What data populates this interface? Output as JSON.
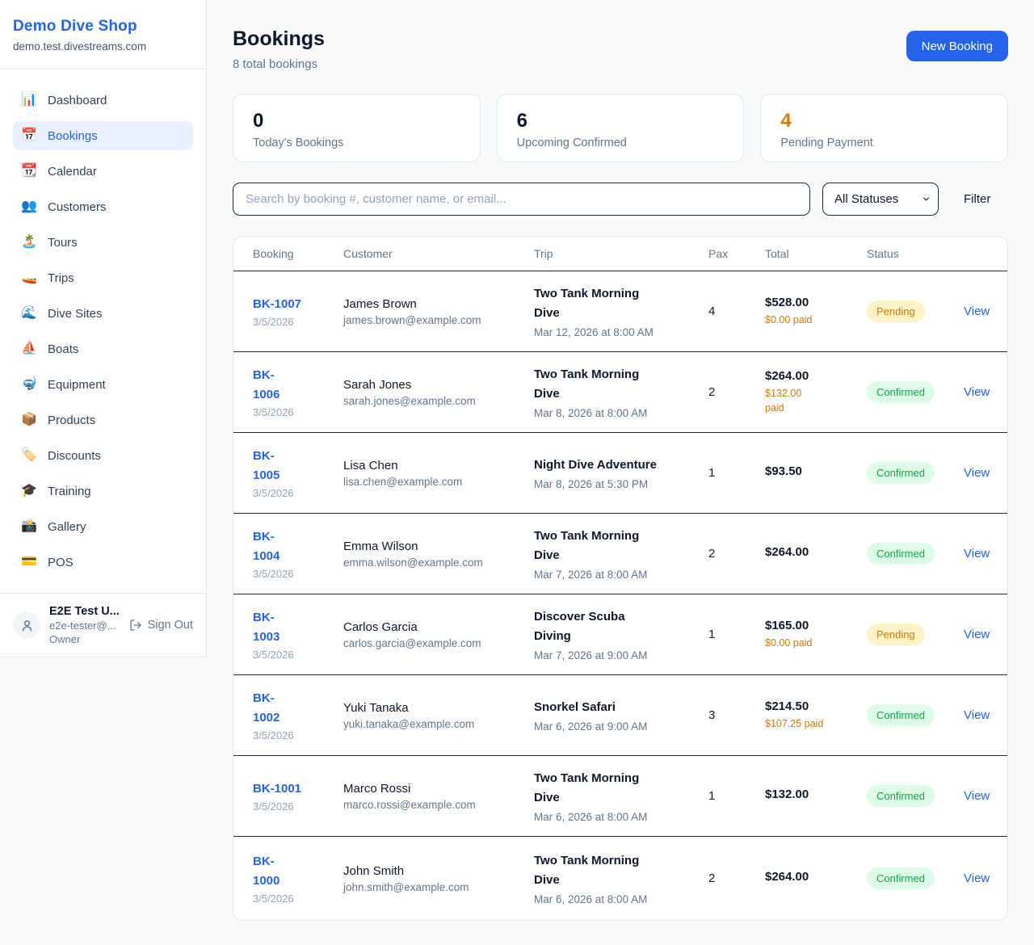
{
  "theme": {
    "accent": "#2563eb",
    "warning": "#d97706",
    "confirmed_text": "#16a34a",
    "confirmed_bg": "#dcfce7",
    "pending_bg": "#fef3c7"
  },
  "sidebar": {
    "brand": {
      "name": "Demo Dive Shop",
      "domain": "demo.test.divestreams.com"
    },
    "nav": [
      {
        "label": "Dashboard",
        "icon": "📊",
        "active": false
      },
      {
        "label": "Bookings",
        "icon": "📅",
        "active": true
      },
      {
        "label": "Calendar",
        "icon": "📆",
        "active": false
      },
      {
        "label": "Customers",
        "icon": "👥",
        "active": false
      },
      {
        "label": "Tours",
        "icon": "🏝️",
        "active": false
      },
      {
        "label": "Trips",
        "icon": "🚤",
        "active": false
      },
      {
        "label": "Dive Sites",
        "icon": "🌊",
        "active": false
      },
      {
        "label": "Boats",
        "icon": "⛵",
        "active": false
      },
      {
        "label": "Equipment",
        "icon": "🤿",
        "active": false
      },
      {
        "label": "Products",
        "icon": "📦",
        "active": false
      },
      {
        "label": "Discounts",
        "icon": "🏷️",
        "active": false
      },
      {
        "label": "Training",
        "icon": "🎓",
        "active": false
      },
      {
        "label": "Gallery",
        "icon": "📸",
        "active": false
      },
      {
        "label": "POS",
        "icon": "💳",
        "active": false
      }
    ],
    "user": {
      "name": "E2E Test U...",
      "email": "e2e-tester@...",
      "role": "Owner",
      "sign_out": "Sign Out"
    }
  },
  "header": {
    "title": "Bookings",
    "subtitle": "8 total bookings",
    "new_booking": "New Booking"
  },
  "stats": [
    {
      "value": "0",
      "label": "Today's Bookings",
      "color": "#0f172a"
    },
    {
      "value": "6",
      "label": "Upcoming Confirmed",
      "color": "#0f172a"
    },
    {
      "value": "4",
      "label": "Pending Payment",
      "color": "#d97706"
    }
  ],
  "filters": {
    "search_placeholder": "Search by booking #, customer name, or email...",
    "status_selected": "All Statuses",
    "filter_label": "Filter"
  },
  "table": {
    "headers": [
      "Booking",
      "Customer",
      "Trip",
      "Pax",
      "Total",
      "Status"
    ],
    "view_label": "View",
    "rows": [
      {
        "id_lines": [
          "BK-1007"
        ],
        "date": "3/5/2026",
        "customer": "James Brown",
        "email": "james.brown@example.com",
        "trip_lines": [
          "Two Tank Morning",
          "Dive"
        ],
        "trip_time": "Mar 12, 2026 at 8:00 AM",
        "pax": "4",
        "total": "$528.00",
        "paid_lines": [
          "$0.00 paid"
        ],
        "status": "Pending"
      },
      {
        "id_lines": [
          "BK-",
          "1006"
        ],
        "date": "3/5/2026",
        "customer": "Sarah Jones",
        "email": "sarah.jones@example.com",
        "trip_lines": [
          "Two Tank Morning",
          "Dive"
        ],
        "trip_time": "Mar 8, 2026 at 8:00 AM",
        "pax": "2",
        "total": "$264.00",
        "paid_lines": [
          "$132.00",
          "paid"
        ],
        "status": "Confirmed"
      },
      {
        "id_lines": [
          "BK-",
          "1005"
        ],
        "date": "3/5/2026",
        "customer": "Lisa Chen",
        "email": "lisa.chen@example.com",
        "trip_lines": [
          "Night Dive Adventure"
        ],
        "trip_time": "Mar 8, 2026 at 5:30 PM",
        "pax": "1",
        "total": "$93.50",
        "paid_lines": [],
        "status": "Confirmed"
      },
      {
        "id_lines": [
          "BK-",
          "1004"
        ],
        "date": "3/5/2026",
        "customer": "Emma Wilson",
        "email": "emma.wilson@example.com",
        "trip_lines": [
          "Two Tank Morning",
          "Dive"
        ],
        "trip_time": "Mar 7, 2026 at 8:00 AM",
        "pax": "2",
        "total": "$264.00",
        "paid_lines": [],
        "status": "Confirmed"
      },
      {
        "id_lines": [
          "BK-",
          "1003"
        ],
        "date": "3/5/2026",
        "customer": "Carlos Garcia",
        "email": "carlos.garcia@example.com",
        "trip_lines": [
          "Discover Scuba",
          "Diving"
        ],
        "trip_time": "Mar 7, 2026 at 9:00 AM",
        "pax": "1",
        "total": "$165.00",
        "paid_lines": [
          "$0.00 paid"
        ],
        "status": "Pending"
      },
      {
        "id_lines": [
          "BK-",
          "1002"
        ],
        "date": "3/5/2026",
        "customer": "Yuki Tanaka",
        "email": "yuki.tanaka@example.com",
        "trip_lines": [
          "Snorkel Safari"
        ],
        "trip_time": "Mar 6, 2026 at 9:00 AM",
        "pax": "3",
        "total": "$214.50",
        "paid_lines": [
          "$107.25 paid"
        ],
        "status": "Confirmed"
      },
      {
        "id_lines": [
          "BK-1001"
        ],
        "date": "3/5/2026",
        "customer": "Marco Rossi",
        "email": "marco.rossi@example.com",
        "trip_lines": [
          "Two Tank Morning",
          "Dive"
        ],
        "trip_time": "Mar 6, 2026 at 8:00 AM",
        "pax": "1",
        "total": "$132.00",
        "paid_lines": [],
        "status": "Confirmed"
      },
      {
        "id_lines": [
          "BK-",
          "1000"
        ],
        "date": "3/5/2026",
        "customer": "John Smith",
        "email": "john.smith@example.com",
        "trip_lines": [
          "Two Tank Morning",
          "Dive"
        ],
        "trip_time": "Mar 6, 2026 at 8:00 AM",
        "pax": "2",
        "total": "$264.00",
        "paid_lines": [],
        "status": "Confirmed"
      }
    ]
  }
}
